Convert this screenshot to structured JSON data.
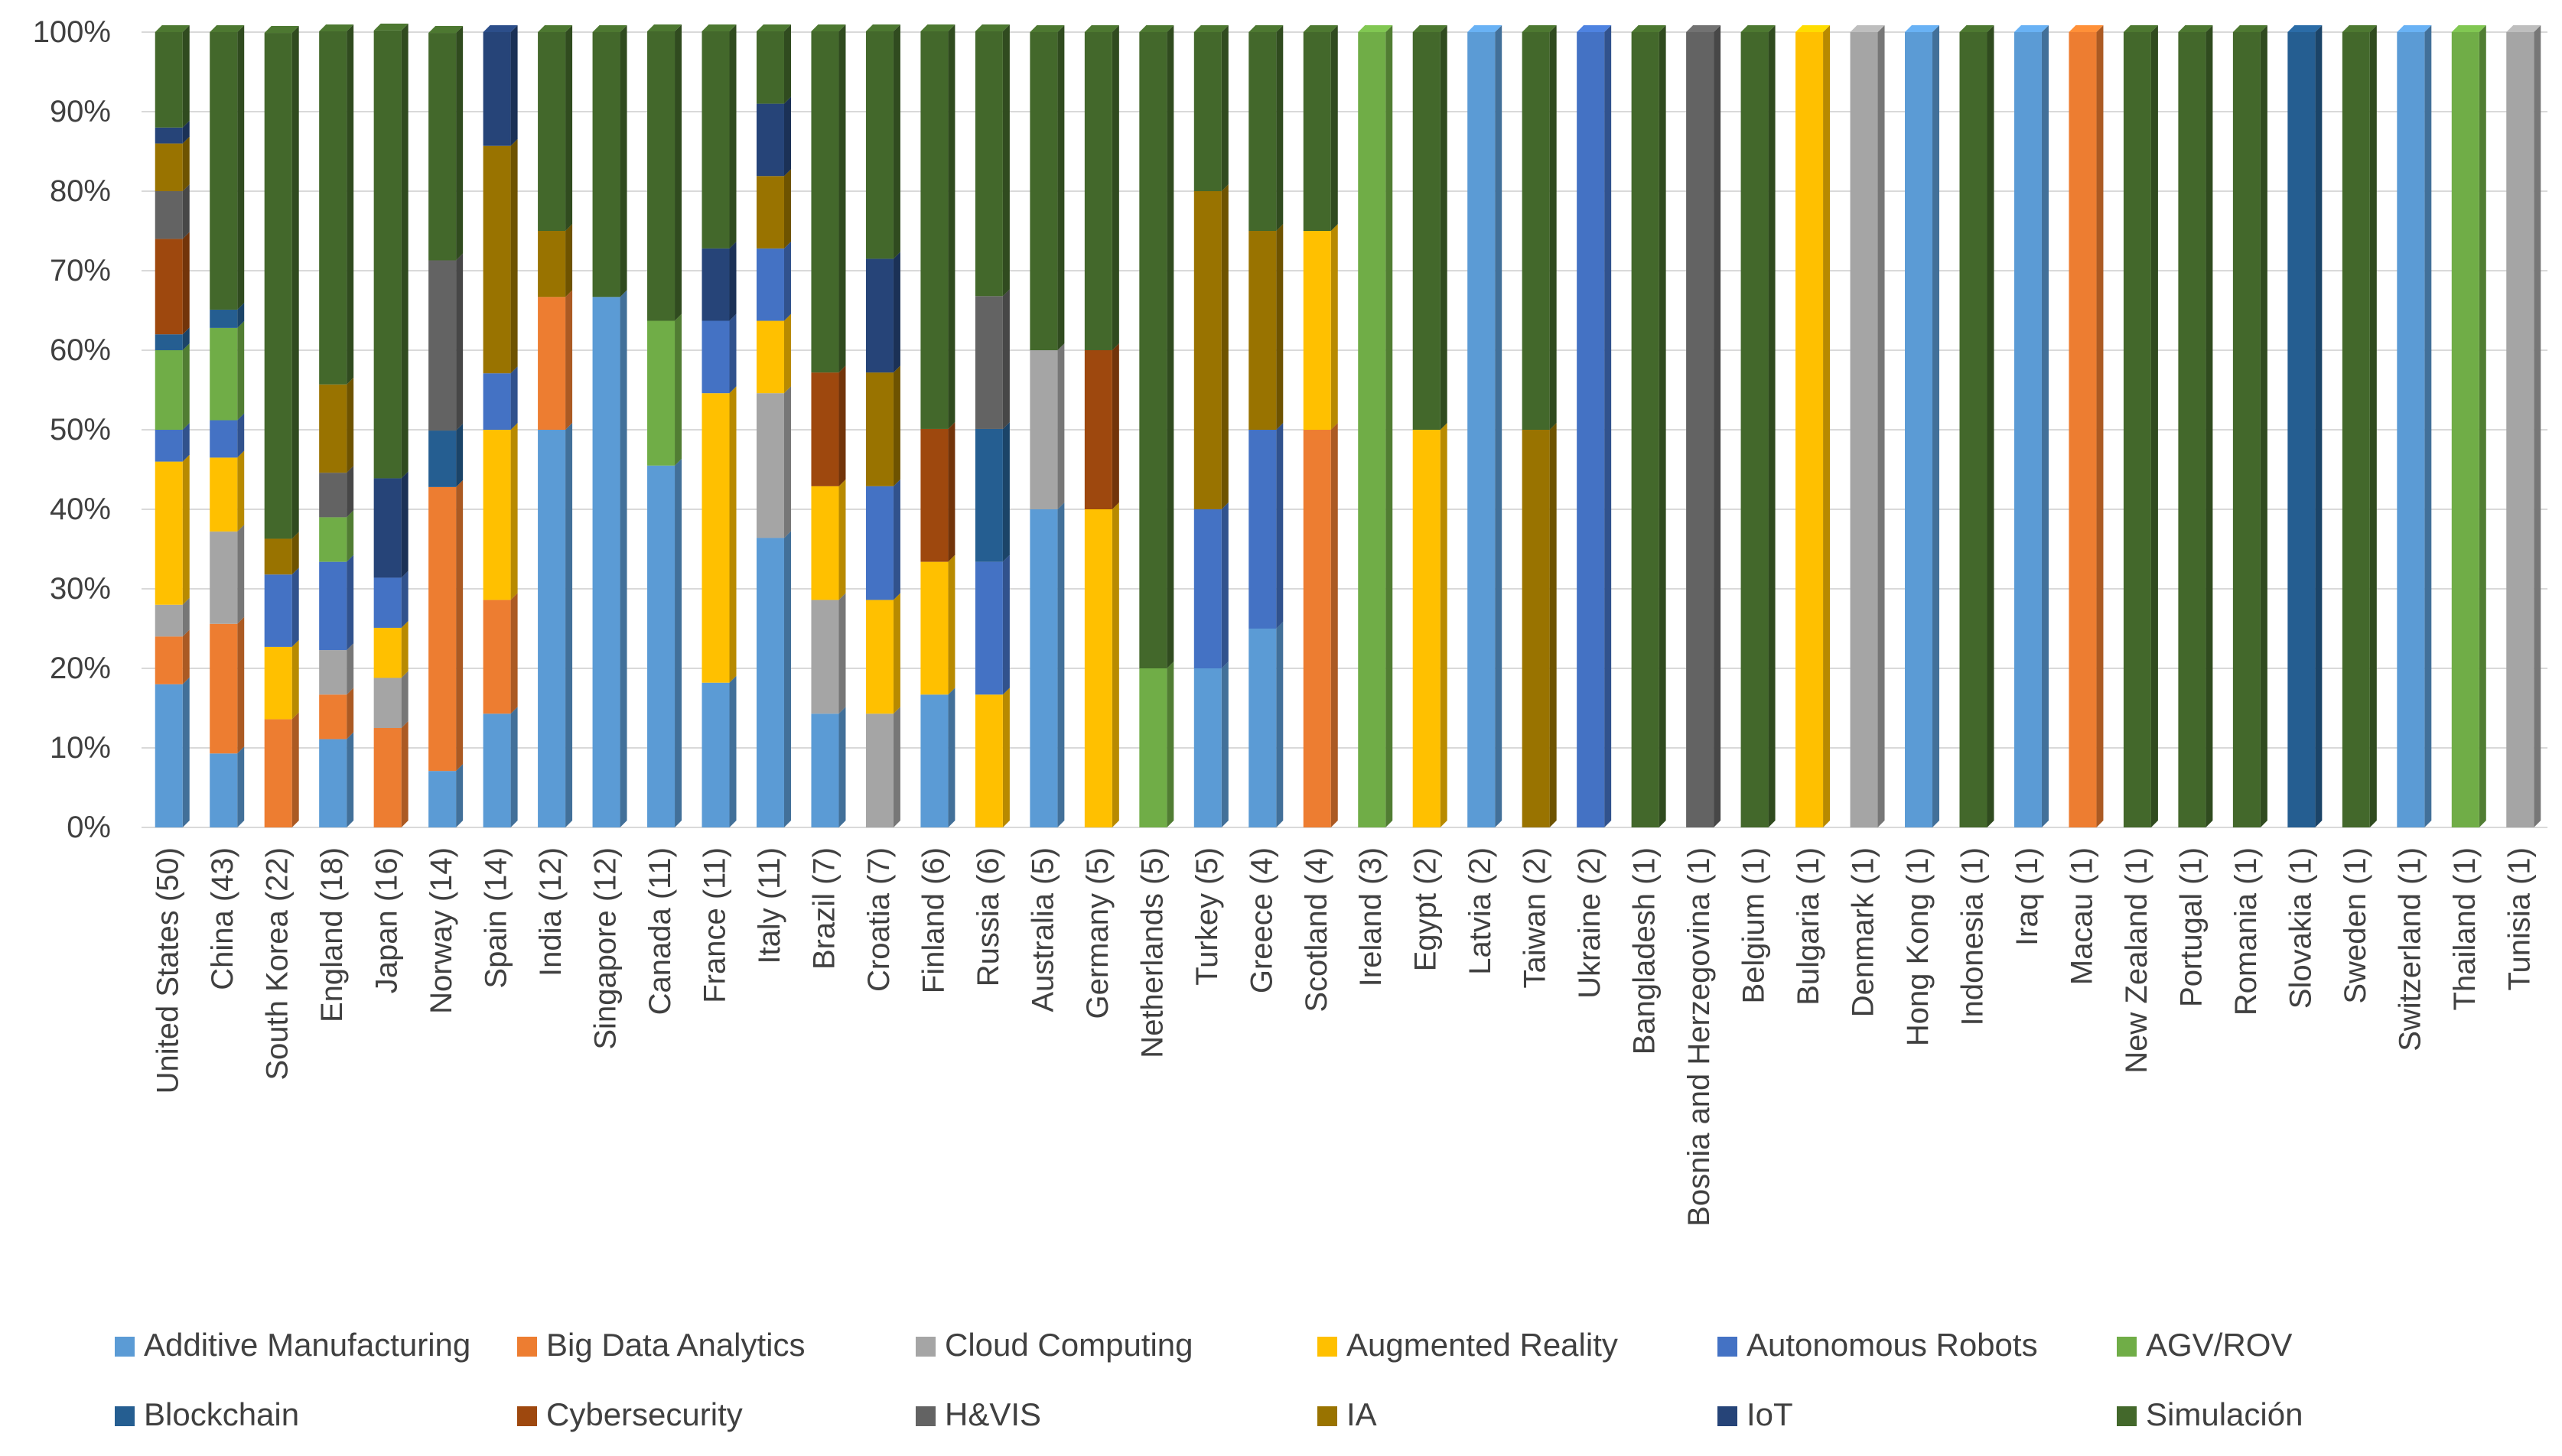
{
  "colors": {
    "Additive Manufacturing": "#5B9BD5",
    "Big Data Analytics": "#ED7D31",
    "Cloud Computing": "#A5A5A5",
    "Augmented Reality": "#FFC000",
    "Autonomous Robots": "#4472C4",
    "AGV/ROV": "#70AD47",
    "Blockchain": "#255E91",
    "Cybersecurity": "#9E480E",
    "H&VIS": "#636363",
    "IA": "#997300",
    "IoT": "#264478",
    "Simulación": "#43682B"
  },
  "chart_data": {
    "type": "bar",
    "stacked": "percent",
    "title": "",
    "xlabel": "",
    "ylabel": "",
    "ylim": [
      0,
      100
    ],
    "yticks": [
      "0%",
      "10%",
      "20%",
      "30%",
      "40%",
      "50%",
      "60%",
      "70%",
      "80%",
      "90%",
      "100%"
    ],
    "grid": true,
    "legend_position": "bottom",
    "categories": [
      "United States (50)",
      "China (43)",
      "South Korea (22)",
      "England (18)",
      "Japan (16)",
      "Norway (14)",
      "Spain (14)",
      "India (12)",
      "Singapore (12)",
      "Canada (11)",
      "France (11)",
      "Italy (11)",
      "Brazil (7)",
      "Croatia (7)",
      "Finland (6)",
      "Russia (6)",
      "Australia (5)",
      "Germany (5)",
      "Netherlands (5)",
      "Turkey (5)",
      "Greece (4)",
      "Scotland (4)",
      "Ireland (3)",
      "Egypt (2)",
      "Latvia (2)",
      "Taiwan (2)",
      "Ukraine (2)",
      "Bangladesh (1)",
      "Bosnia and Herzegovina (1)",
      "Belgium (1)",
      "Bulgaria (1)",
      "Denmark (1)",
      "Hong Kong (1)",
      "Indonesia (1)",
      "Iraq (1)",
      "Macau (1)",
      "New Zealand (1)",
      "Portugal (1)",
      "Romania (1)",
      "Slovakia (1)",
      "Sweden (1)",
      "Switzerland (1)",
      "Thailand (1)",
      "Tunisia (1)"
    ],
    "series": [
      {
        "name": "Additive Manufacturing",
        "values": [
          18,
          9.3,
          0,
          11.1,
          0,
          7.1,
          14.3,
          50,
          66.7,
          45.5,
          18.2,
          36.4,
          14.3,
          0,
          16.7,
          0,
          40,
          0,
          0,
          20,
          25,
          0,
          0,
          0,
          100,
          0,
          0,
          0,
          0,
          0,
          0,
          0,
          100,
          0,
          100,
          0,
          0,
          0,
          0,
          0,
          0,
          100,
          0,
          0
        ]
      },
      {
        "name": "Big Data Analytics",
        "values": [
          6,
          16.3,
          13.6,
          5.6,
          12.5,
          35.7,
          14.3,
          16.7,
          0,
          0,
          0,
          0,
          0,
          0,
          0,
          0,
          0,
          0,
          0,
          0,
          0,
          50,
          0,
          0,
          0,
          0,
          0,
          0,
          0,
          0,
          0,
          0,
          0,
          0,
          0,
          100,
          0,
          0,
          0,
          0,
          0,
          0,
          0,
          0
        ]
      },
      {
        "name": "Cloud Computing",
        "values": [
          4,
          11.6,
          0,
          5.6,
          6.3,
          0,
          0,
          0,
          0,
          0,
          0,
          18.2,
          14.3,
          14.3,
          0,
          0,
          20,
          0,
          0,
          0,
          0,
          0,
          0,
          0,
          0,
          0,
          0,
          0,
          0,
          0,
          0,
          100,
          0,
          0,
          0,
          0,
          0,
          0,
          0,
          0,
          0,
          0,
          0,
          100
        ]
      },
      {
        "name": "Augmented Reality",
        "values": [
          18,
          9.3,
          9.1,
          0,
          6.3,
          0,
          21.4,
          0,
          0,
          0,
          36.4,
          9.1,
          14.3,
          14.3,
          16.7,
          16.7,
          0,
          40,
          0,
          0,
          0,
          25,
          0,
          50,
          0,
          0,
          0,
          0,
          0,
          0,
          100,
          0,
          0,
          0,
          0,
          0,
          0,
          0,
          0,
          0,
          0,
          0,
          0,
          0
        ]
      },
      {
        "name": "Autonomous Robots",
        "values": [
          4,
          4.7,
          9.1,
          11.1,
          6.3,
          0,
          7.1,
          0,
          0,
          0,
          9.1,
          9.1,
          0,
          14.3,
          0,
          16.7,
          0,
          0,
          0,
          20,
          25,
          0,
          0,
          0,
          0,
          0,
          100,
          0,
          0,
          0,
          0,
          0,
          0,
          0,
          0,
          0,
          0,
          0,
          0,
          0,
          0,
          0,
          0,
          0
        ]
      },
      {
        "name": "AGV/ROV",
        "values": [
          10,
          11.6,
          0,
          5.6,
          0,
          0,
          0,
          0,
          0,
          18.2,
          0,
          0,
          0,
          0,
          0,
          0,
          0,
          0,
          20,
          0,
          0,
          0,
          100,
          0,
          0,
          0,
          0,
          0,
          0,
          0,
          0,
          0,
          0,
          0,
          0,
          0,
          0,
          0,
          0,
          0,
          0,
          0,
          100,
          0
        ]
      },
      {
        "name": "Blockchain",
        "values": [
          2,
          2.3,
          0,
          0,
          0,
          7.1,
          0,
          0,
          0,
          0,
          0,
          0,
          0,
          0,
          0,
          16.7,
          0,
          0,
          0,
          0,
          0,
          0,
          0,
          0,
          0,
          0,
          0,
          0,
          0,
          0,
          0,
          0,
          0,
          0,
          0,
          0,
          0,
          0,
          0,
          100,
          0,
          0,
          0,
          0
        ]
      },
      {
        "name": "Cybersecurity",
        "values": [
          12,
          0,
          0,
          0,
          0,
          0,
          0,
          0,
          0,
          0,
          0,
          0,
          14.3,
          0,
          16.7,
          0,
          0,
          20,
          0,
          0,
          0,
          0,
          0,
          0,
          0,
          0,
          0,
          0,
          0,
          0,
          0,
          0,
          0,
          0,
          0,
          0,
          0,
          0,
          0,
          0,
          0,
          0,
          0,
          0
        ]
      },
      {
        "name": "H&VIS",
        "values": [
          6,
          0,
          0,
          5.6,
          0,
          21.4,
          0,
          0,
          0,
          0,
          0,
          0,
          0,
          0,
          0,
          16.7,
          0,
          0,
          0,
          0,
          0,
          0,
          0,
          0,
          0,
          0,
          0,
          0,
          100,
          0,
          0,
          0,
          0,
          0,
          0,
          0,
          0,
          0,
          0,
          0,
          0,
          0,
          0,
          0
        ]
      },
      {
        "name": "IA",
        "values": [
          6,
          0,
          4.5,
          11.1,
          0,
          0,
          28.6,
          8.3,
          0,
          0,
          0,
          9.1,
          0,
          14.3,
          0,
          0,
          0,
          0,
          0,
          40,
          25,
          0,
          0,
          0,
          0,
          50,
          0,
          0,
          0,
          0,
          0,
          0,
          0,
          0,
          0,
          0,
          0,
          0,
          0,
          0,
          0,
          0,
          0,
          0
        ]
      },
      {
        "name": "IoT",
        "values": [
          2,
          0,
          0,
          0,
          12.5,
          0,
          14.3,
          0,
          0,
          0,
          9.1,
          9.1,
          0,
          14.3,
          0,
          0,
          0,
          0,
          0,
          0,
          0,
          0,
          0,
          0,
          0,
          0,
          0,
          0,
          0,
          0,
          0,
          0,
          0,
          0,
          0,
          0,
          0,
          0,
          0,
          0,
          0,
          0,
          0,
          0
        ]
      },
      {
        "name": "Simulación",
        "values": [
          12,
          34.9,
          63.6,
          44.4,
          56.3,
          28.6,
          0,
          25,
          33.3,
          36.4,
          27.3,
          9.1,
          42.9,
          28.6,
          50,
          33.3,
          40,
          40,
          80,
          20,
          25,
          25,
          0,
          50,
          0,
          50,
          0,
          100,
          0,
          100,
          0,
          0,
          0,
          100,
          0,
          0,
          100,
          100,
          100,
          0,
          100,
          0,
          0,
          0
        ]
      }
    ]
  }
}
